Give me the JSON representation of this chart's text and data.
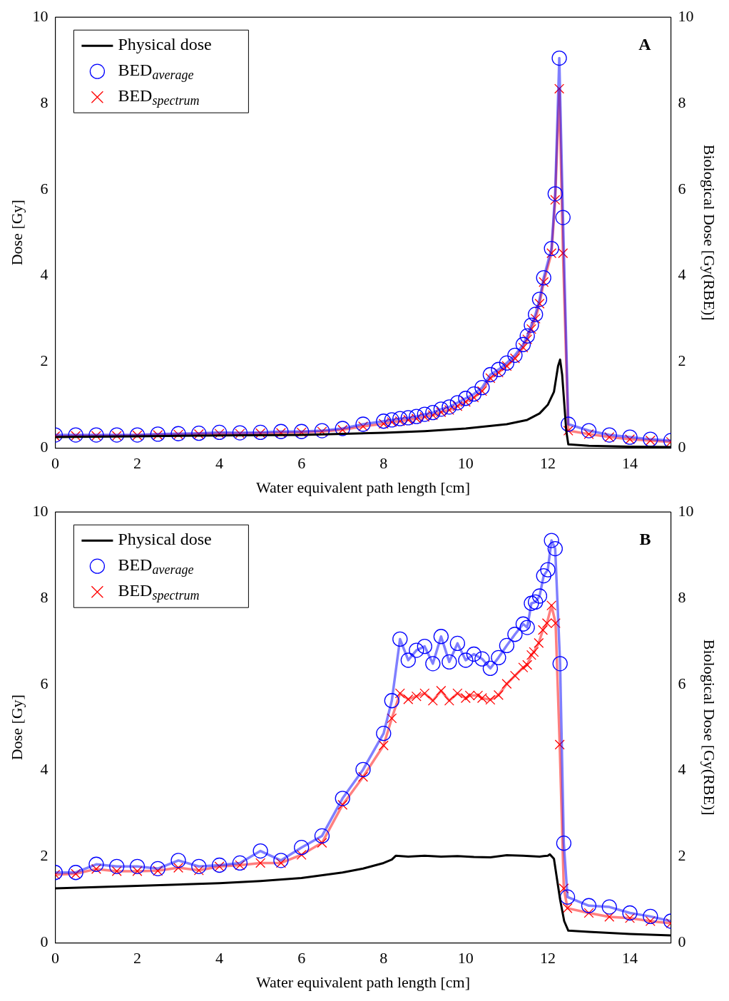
{
  "chart_data": [
    {
      "type": "line",
      "xlabel": "Water equivalent path length [cm]",
      "ylabel": "Dose [Gy]",
      "y2label": "Biological Dose [Gy(RBE)]",
      "xlim": [
        0,
        15
      ],
      "xticks": [
        0,
        2,
        4,
        6,
        8,
        10,
        12,
        14
      ],
      "ylim": [
        0,
        10
      ],
      "yticks": [
        0,
        2,
        4,
        6,
        8,
        10
      ],
      "y2lim": [
        0,
        10
      ],
      "y2ticks": [
        0,
        2,
        4,
        6,
        8,
        10
      ],
      "legend": "top left",
      "annotations": [
        "A"
      ],
      "series": [
        {
          "name": "Physical dose",
          "color": "#000000",
          "marker": "none",
          "x": [
            0,
            2,
            4,
            6,
            8,
            9,
            10,
            10.5,
            11,
            11.5,
            11.8,
            12,
            12.15,
            12.25,
            12.3,
            12.35,
            12.45,
            12.5,
            13,
            14,
            15
          ],
          "values": [
            0.25,
            0.27,
            0.29,
            0.3,
            0.35,
            0.39,
            0.45,
            0.5,
            0.55,
            0.65,
            0.8,
            1.0,
            1.3,
            1.9,
            2.05,
            1.7,
            0.4,
            0.08,
            0.05,
            0.03,
            0.02
          ]
        },
        {
          "name": "BED$_{average}$",
          "color": "#0000ff",
          "marker": "circle",
          "x": [
            0,
            0.5,
            1,
            1.5,
            2,
            2.5,
            3,
            3.5,
            4,
            4.5,
            5,
            5.5,
            6,
            6.5,
            7,
            7.5,
            8,
            8.2,
            8.4,
            8.6,
            8.8,
            9,
            9.2,
            9.4,
            9.6,
            9.8,
            10,
            10.2,
            10.4,
            10.6,
            10.8,
            11,
            11.2,
            11.4,
            11.5,
            11.6,
            11.7,
            11.8,
            11.9,
            12.09,
            12.18,
            12.28,
            12.37,
            12.5,
            13,
            13.5,
            14,
            14.5,
            15
          ],
          "values": [
            0.3,
            0.3,
            0.3,
            0.3,
            0.3,
            0.32,
            0.33,
            0.34,
            0.36,
            0.35,
            0.36,
            0.38,
            0.38,
            0.4,
            0.45,
            0.55,
            0.62,
            0.65,
            0.68,
            0.7,
            0.73,
            0.78,
            0.82,
            0.9,
            0.95,
            1.05,
            1.15,
            1.25,
            1.4,
            1.7,
            1.82,
            1.97,
            2.15,
            2.4,
            2.6,
            2.85,
            3.1,
            3.45,
            3.95,
            4.63,
            5.9,
            9.05,
            5.35,
            0.55,
            0.4,
            0.3,
            0.25,
            0.2,
            0.17
          ]
        },
        {
          "name": "BED$_{spectrum}$",
          "color": "#ff0000",
          "marker": "cross",
          "x": [
            0,
            0.5,
            1,
            1.5,
            2,
            2.5,
            3,
            3.5,
            4,
            4.5,
            5,
            5.5,
            6,
            6.5,
            7,
            7.5,
            8,
            8.2,
            8.4,
            8.6,
            8.8,
            9,
            9.2,
            9.4,
            9.6,
            9.8,
            10,
            10.2,
            10.4,
            10.6,
            10.8,
            11,
            11.2,
            11.4,
            11.5,
            11.6,
            11.7,
            11.8,
            11.9,
            12.09,
            12.18,
            12.28,
            12.37,
            12.5,
            13,
            13.5,
            14,
            14.5,
            15
          ],
          "values": [
            0.27,
            0.28,
            0.28,
            0.28,
            0.29,
            0.3,
            0.31,
            0.32,
            0.33,
            0.33,
            0.34,
            0.35,
            0.36,
            0.38,
            0.42,
            0.5,
            0.56,
            0.6,
            0.62,
            0.65,
            0.68,
            0.72,
            0.76,
            0.83,
            0.88,
            0.97,
            1.07,
            1.17,
            1.32,
            1.62,
            1.75,
            1.9,
            2.08,
            2.33,
            2.52,
            2.76,
            3.0,
            3.35,
            3.85,
            4.52,
            5.76,
            8.34,
            4.52,
            0.4,
            0.32,
            0.25,
            0.2,
            0.17,
            0.14
          ]
        }
      ]
    },
    {
      "type": "line",
      "xlabel": "Water equivalent path length [cm]",
      "ylabel": "Dose [Gy]",
      "y2label": "Biological Dose [Gy(RBE)]",
      "xlim": [
        0,
        15
      ],
      "xticks": [
        0,
        2,
        4,
        6,
        8,
        10,
        12,
        14
      ],
      "ylim": [
        0,
        10
      ],
      "yticks": [
        0,
        2,
        4,
        6,
        8,
        10
      ],
      "y2lim": [
        0,
        10
      ],
      "y2ticks": [
        0,
        2,
        4,
        6,
        8,
        10
      ],
      "legend": "top left",
      "annotations": [
        "B"
      ],
      "series": [
        {
          "name": "Physical dose",
          "color": "#000000",
          "marker": "none",
          "x": [
            0,
            2,
            4,
            5,
            6,
            7,
            7.5,
            8,
            8.2,
            8.3,
            8.6,
            9,
            9.4,
            9.8,
            10.2,
            10.6,
            11,
            11.4,
            11.8,
            12,
            12.05,
            12.15,
            12.3,
            12.4,
            12.5,
            13,
            14,
            15
          ],
          "values": [
            1.26,
            1.32,
            1.38,
            1.43,
            1.5,
            1.63,
            1.72,
            1.85,
            1.93,
            2.02,
            2.0,
            2.02,
            2.0,
            2.01,
            1.99,
            1.98,
            2.03,
            2.02,
            2.0,
            2.02,
            2.05,
            1.95,
            1.0,
            0.5,
            0.28,
            0.25,
            0.2,
            0.17
          ]
        },
        {
          "name": "BED$_{average}$",
          "color": "#0000ff",
          "marker": "circle",
          "x": [
            0,
            0.5,
            1,
            1.5,
            2,
            2.5,
            3,
            3.5,
            4,
            4.5,
            5,
            5.5,
            6,
            6.5,
            7,
            7.5,
            8,
            8.2,
            8.4,
            8.6,
            8.8,
            9,
            9.2,
            9.4,
            9.6,
            9.8,
            10,
            10.2,
            10.4,
            10.6,
            10.8,
            11,
            11.2,
            11.4,
            11.5,
            11.6,
            11.7,
            11.8,
            11.9,
            12,
            12.09,
            12.18,
            12.3,
            12.39,
            12.48,
            13,
            13.5,
            14,
            14.5,
            15
          ],
          "values": [
            1.63,
            1.63,
            1.82,
            1.77,
            1.77,
            1.72,
            1.91,
            1.77,
            1.8,
            1.85,
            2.13,
            1.91,
            2.21,
            2.48,
            3.35,
            4.02,
            4.86,
            5.62,
            7.05,
            6.56,
            6.79,
            6.88,
            6.48,
            7.11,
            6.52,
            6.95,
            6.56,
            6.7,
            6.59,
            6.37,
            6.62,
            6.9,
            7.16,
            7.4,
            7.32,
            7.88,
            7.91,
            8.05,
            8.52,
            8.66,
            9.34,
            9.15,
            6.48,
            2.31,
            1.06,
            0.86,
            0.83,
            0.69,
            0.61,
            0.5
          ]
        },
        {
          "name": "BED$_{spectrum}$",
          "color": "#ff0000",
          "marker": "cross",
          "x": [
            0,
            0.5,
            1,
            1.5,
            2,
            2.5,
            3,
            3.5,
            4,
            4.5,
            5,
            5.5,
            6,
            6.5,
            7,
            7.5,
            8,
            8.2,
            8.4,
            8.6,
            8.8,
            9,
            9.2,
            9.4,
            9.6,
            9.8,
            10,
            10.1,
            10.3,
            10.4,
            10.6,
            10.8,
            11,
            11.2,
            11.4,
            11.5,
            11.6,
            11.66,
            11.78,
            11.88,
            11.98,
            12.09,
            12.19,
            12.29,
            12.39,
            12.48,
            13,
            13.5,
            14,
            14.5,
            15
          ],
          "values": [
            1.58,
            1.6,
            1.71,
            1.66,
            1.66,
            1.67,
            1.74,
            1.68,
            1.77,
            1.8,
            1.85,
            1.85,
            2.04,
            2.32,
            3.2,
            3.85,
            4.58,
            5.21,
            5.79,
            5.65,
            5.72,
            5.79,
            5.62,
            5.85,
            5.62,
            5.79,
            5.68,
            5.74,
            5.74,
            5.68,
            5.64,
            5.75,
            6.01,
            6.2,
            6.39,
            6.45,
            6.68,
            6.75,
            6.96,
            7.26,
            7.42,
            7.83,
            7.42,
            4.6,
            1.26,
            0.8,
            0.69,
            0.6,
            0.57,
            0.5,
            0.45
          ]
        }
      ]
    }
  ]
}
